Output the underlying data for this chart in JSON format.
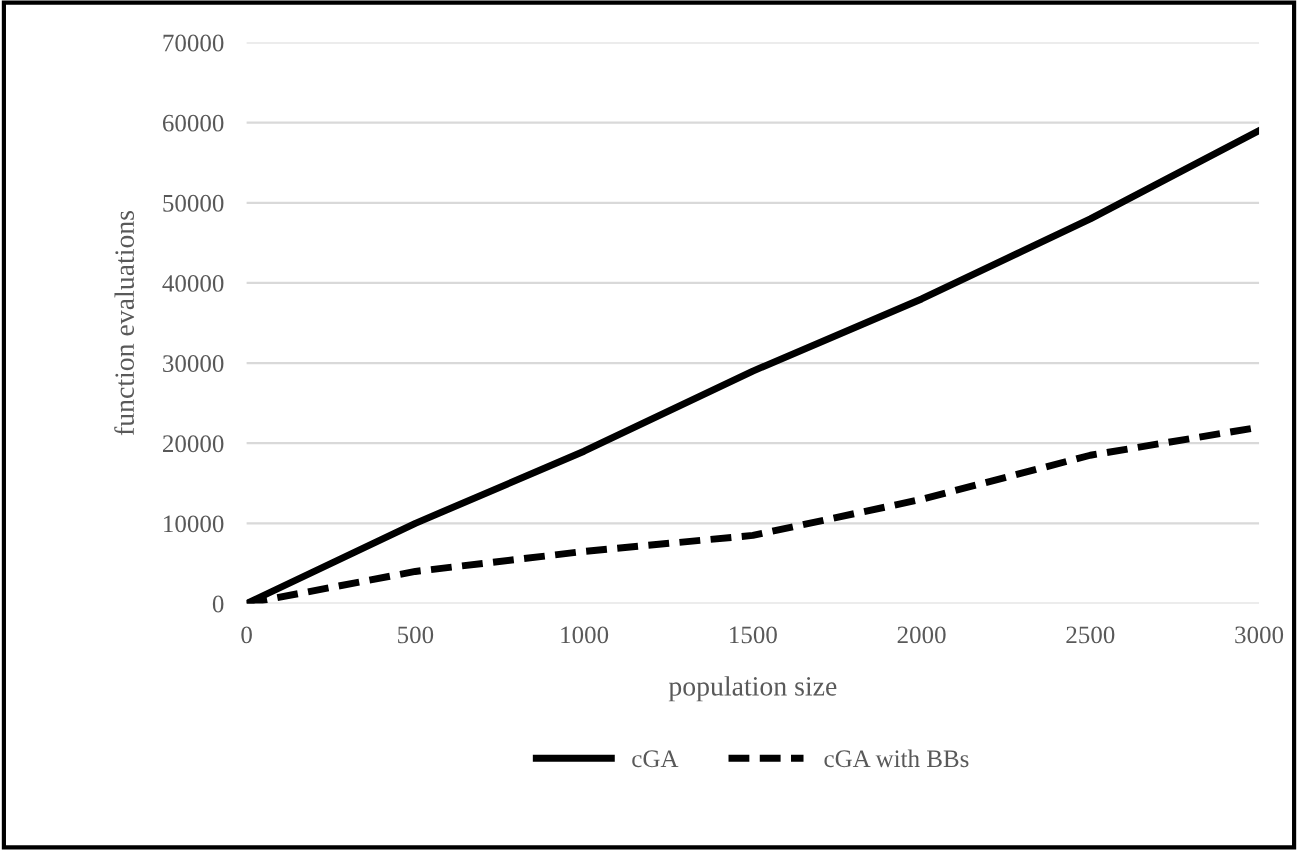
{
  "chart_data": {
    "type": "line",
    "xlabel": "population size",
    "ylabel": "function evaluations",
    "x": [
      0,
      500,
      1000,
      1500,
      2000,
      2500,
      3000
    ],
    "series": [
      {
        "name": "cGA",
        "color": "#000000",
        "line_style": "solid",
        "values": [
          0,
          10000,
          19000,
          29000,
          38000,
          48000,
          59000
        ]
      },
      {
        "name": "cGA with BBs",
        "color": "#000000",
        "line_style": "dashed",
        "values": [
          0,
          4000,
          6500,
          8500,
          13000,
          18500,
          22000
        ]
      }
    ],
    "xlim": [
      0,
      3000
    ],
    "xticks": [
      0,
      500,
      1000,
      1500,
      2000,
      2500,
      3000
    ],
    "ylim": [
      0,
      70000
    ],
    "yticks": [
      0,
      10000,
      20000,
      30000,
      40000,
      50000,
      60000,
      70000
    ],
    "grid": "y",
    "legend": "bottom"
  }
}
